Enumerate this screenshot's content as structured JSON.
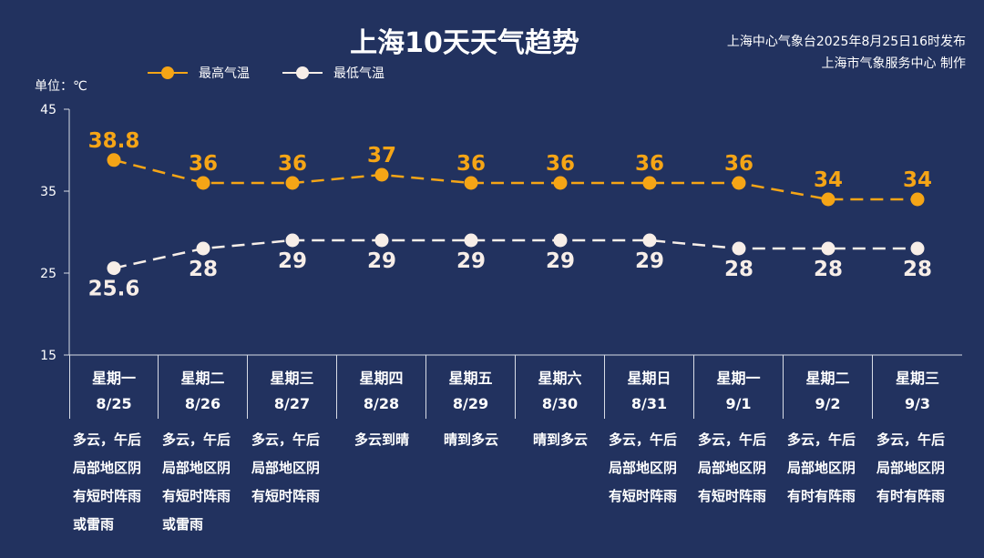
{
  "header": {
    "title": "上海10天天气趋势",
    "source_line1": "上海中心气象台2025年8月25日16时发布",
    "source_line2": "上海市气象服务中心 制作",
    "unit": "单位：℃"
  },
  "colors": {
    "background": "#22325f",
    "high": "#f5a516",
    "low": "#f7eee8",
    "axis": "#d8dce6"
  },
  "chart_data": {
    "type": "line",
    "title": "上海10天天气趋势",
    "ylabel": "单位：℃",
    "ylim": [
      15,
      45
    ],
    "yticks": [
      "15",
      "25",
      "35",
      "45"
    ],
    "grid": false,
    "legend_position": "top-left",
    "categories": [
      "8/25",
      "8/26",
      "8/27",
      "8/28",
      "8/29",
      "8/30",
      "8/31",
      "9/1",
      "9/2",
      "9/3"
    ],
    "series": [
      {
        "name": "最高气温",
        "values": [
          38.8,
          36,
          36,
          37,
          36,
          36,
          36,
          36,
          34,
          34
        ],
        "labels": [
          "38.8",
          "36",
          "36",
          "37",
          "36",
          "36",
          "36",
          "36",
          "34",
          "34"
        ]
      },
      {
        "name": "最低气温",
        "values": [
          25.6,
          28,
          29,
          29,
          29,
          29,
          29,
          28,
          28,
          28
        ],
        "labels": [
          "25.6",
          "28",
          "29",
          "29",
          "29",
          "29",
          "29",
          "28",
          "28",
          "28"
        ]
      }
    ]
  },
  "days": [
    {
      "weekday": "星期一",
      "date": "8/25",
      "weather": [
        "多云，午后",
        "局部地区阴",
        "有短时阵雨",
        "或雷雨"
      ]
    },
    {
      "weekday": "星期二",
      "date": "8/26",
      "weather": [
        "多云，午后",
        "局部地区阴",
        "有短时阵雨",
        "或雷雨"
      ]
    },
    {
      "weekday": "星期三",
      "date": "8/27",
      "weather": [
        "多云，午后",
        "局部地区阴",
        "有短时阵雨"
      ]
    },
    {
      "weekday": "星期四",
      "date": "8/28",
      "weather": [
        "多云到晴"
      ]
    },
    {
      "weekday": "星期五",
      "date": "8/29",
      "weather": [
        "晴到多云"
      ]
    },
    {
      "weekday": "星期六",
      "date": "8/30",
      "weather": [
        "晴到多云"
      ]
    },
    {
      "weekday": "星期日",
      "date": "8/31",
      "weather": [
        "多云，午后",
        "局部地区阴",
        "有短时阵雨"
      ]
    },
    {
      "weekday": "星期一",
      "date": "9/1",
      "weather": [
        "多云，午后",
        "局部地区阴",
        "有短时阵雨"
      ]
    },
    {
      "weekday": "星期二",
      "date": "9/2",
      "weather": [
        "多云，午后",
        "局部地区阴",
        "有时有阵雨"
      ]
    },
    {
      "weekday": "星期三",
      "date": "9/3",
      "weather": [
        "多云，午后",
        "局部地区阴",
        "有时有阵雨"
      ]
    }
  ]
}
